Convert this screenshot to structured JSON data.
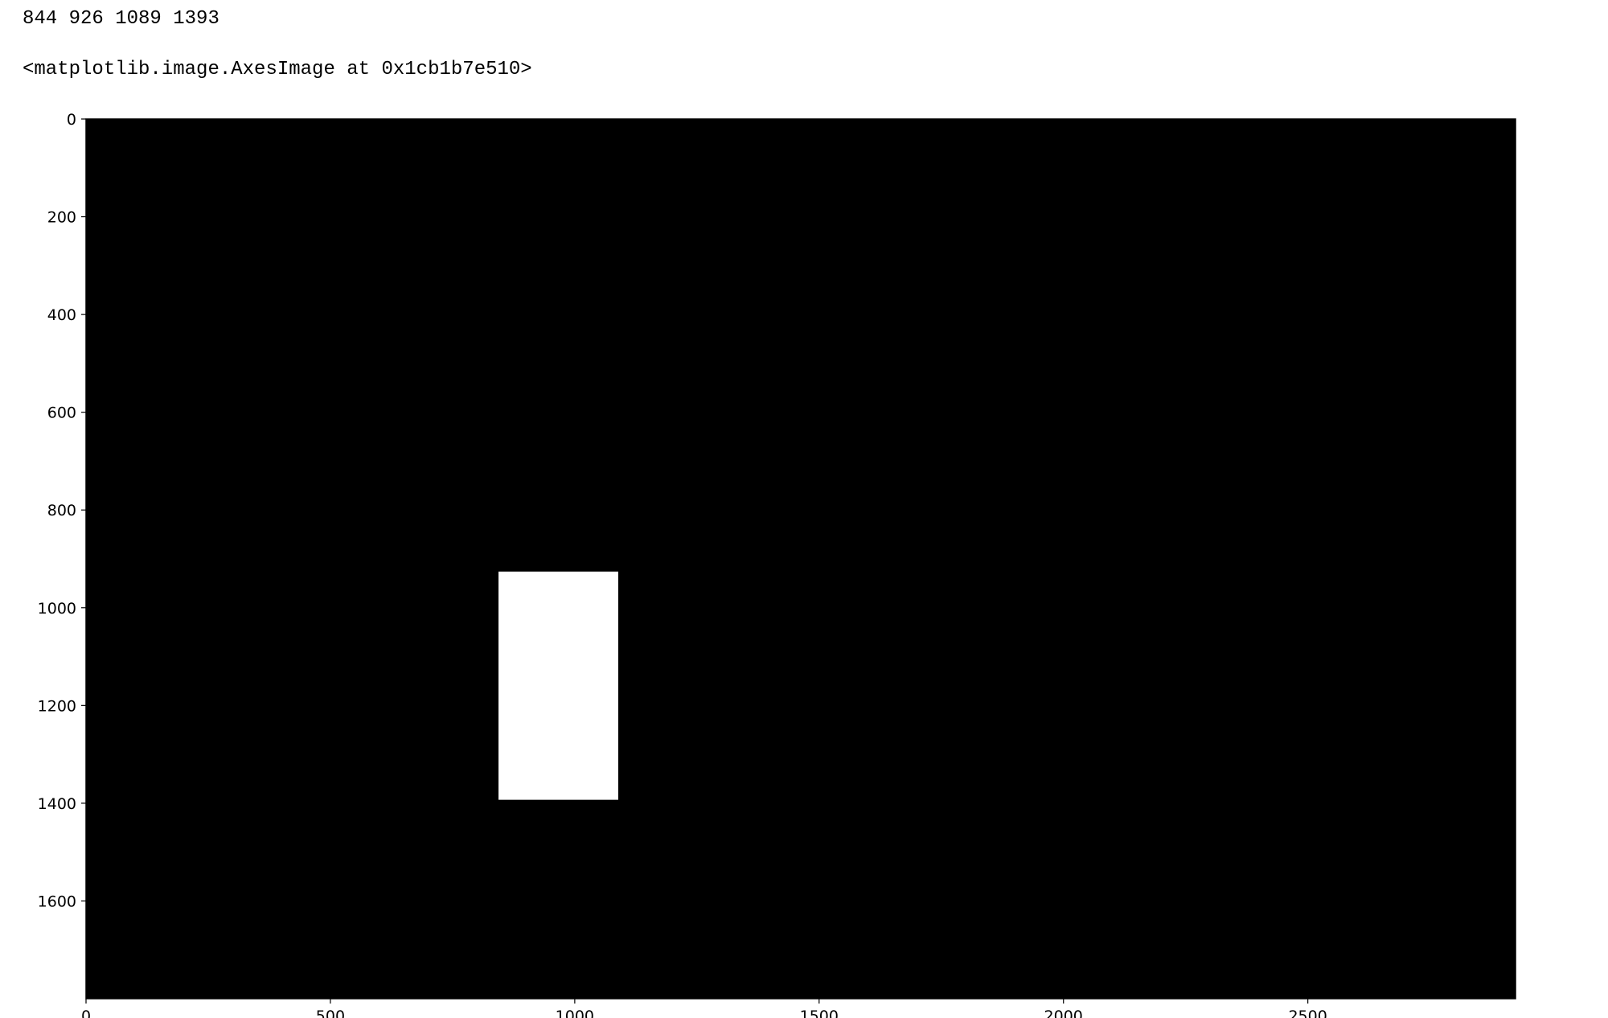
{
  "output": {
    "line1": "844 926 1089 1393",
    "line2": "<matplotlib.image.AxesImage at 0x1cb1b7e510>"
  },
  "chart_data": {
    "type": "image",
    "image_shape": [
      1800,
      2925
    ],
    "background_color": "#000000",
    "foreground_color": "#ffffff",
    "filled_rect": {
      "x0": 844,
      "y0": 926,
      "x1": 1089,
      "y1": 1393
    },
    "x_ticks": [
      0,
      500,
      1000,
      1500,
      2000,
      2500
    ],
    "x_tick_labels": [
      "0",
      "500",
      "1000",
      "1500",
      "2000",
      "2500"
    ],
    "y_ticks": [
      0,
      200,
      400,
      600,
      800,
      1000,
      1200,
      1400,
      1600
    ],
    "y_tick_labels": [
      "0",
      "200",
      "400",
      "600",
      "800",
      "1000",
      "1200",
      "1400",
      "1600"
    ],
    "y_inverted": true,
    "xlabel": "",
    "ylabel": "",
    "title": ""
  }
}
